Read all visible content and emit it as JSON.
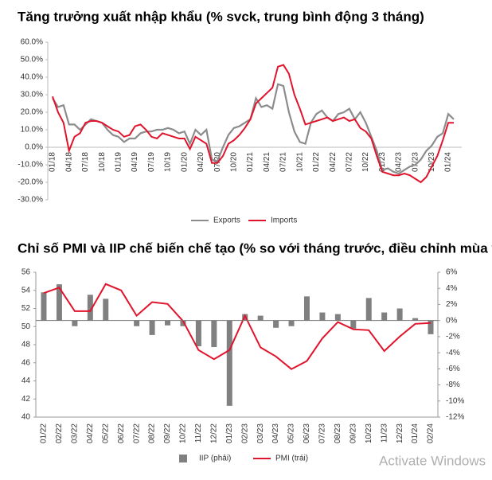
{
  "chart_data": [
    {
      "type": "line",
      "title": "Tăng trưởng xuất nhập khẩu (% svck, trung bình động 3 tháng)",
      "categories": [
        "01/18",
        null,
        null,
        "04/18",
        null,
        null,
        "07/18",
        null,
        null,
        "10/18",
        null,
        null,
        "01/19",
        null,
        null,
        "04/19",
        null,
        null,
        "07/19",
        null,
        null,
        "10/19",
        null,
        null,
        "01/20",
        null,
        null,
        "04/20",
        null,
        null,
        "07/20",
        null,
        null,
        "10/20",
        null,
        null,
        "01/21",
        null,
        null,
        "04/21",
        null,
        null,
        "07/21",
        null,
        null,
        "10/21",
        null,
        null,
        "01/22",
        null,
        null,
        "04/22",
        null,
        null,
        "07/22",
        null,
        null,
        "10/22",
        null,
        null,
        "01/23",
        null,
        null,
        "04/23",
        null,
        null,
        "07/23",
        null,
        null,
        "10/23",
        null,
        null,
        "01/24",
        null
      ],
      "series": [
        {
          "name": "Exports",
          "color": "#8c8c8c",
          "values": [
            28,
            23,
            24,
            13,
            13,
            10,
            13,
            16,
            15,
            14,
            10,
            7,
            6,
            3,
            5,
            5,
            8,
            9,
            9,
            10,
            10,
            11,
            10,
            8,
            9,
            2,
            10,
            7,
            10,
            -7,
            -8,
            0,
            7,
            11,
            12,
            14,
            16,
            28,
            23,
            24,
            22,
            36,
            35,
            20,
            9,
            3,
            2,
            14,
            19,
            21,
            17,
            15,
            19,
            20,
            22,
            16,
            20,
            14,
            6,
            -2,
            -13,
            -12,
            -14,
            -15,
            -13,
            -11,
            -10,
            -7,
            -2,
            1,
            6,
            8,
            19,
            16
          ]
        },
        {
          "name": "Imports",
          "color": "#e0142c",
          "values": [
            29,
            20,
            14,
            -2,
            6,
            8,
            14,
            15,
            15,
            14,
            12,
            10,
            9,
            6,
            7,
            12,
            13,
            10,
            6,
            5,
            8,
            7,
            6,
            5,
            5,
            -1,
            6,
            4,
            2,
            -9,
            -9,
            -5,
            2,
            4,
            7,
            11,
            16,
            25,
            28,
            31,
            34,
            46,
            47,
            42,
            30,
            22,
            13,
            14,
            15,
            16,
            17,
            15,
            16,
            17,
            15,
            16,
            11,
            9,
            5,
            -5,
            -14,
            -15,
            -16,
            -16,
            -15,
            -16,
            -18,
            -20,
            -17,
            -11,
            -5,
            4,
            14,
            14
          ]
        }
      ],
      "ylim": [
        -30,
        60
      ],
      "yticks": [
        {
          "value": -30,
          "label": "-30.0%"
        },
        {
          "value": -20,
          "label": "-20.0%"
        },
        {
          "value": -10,
          "label": "-10.0%"
        },
        {
          "value": 0,
          "label": "0.0%"
        },
        {
          "value": 10,
          "label": "10.0%"
        },
        {
          "value": 20,
          "label": "20.0%"
        },
        {
          "value": 30,
          "label": "30.0%"
        },
        {
          "value": 40,
          "label": "40.0%"
        },
        {
          "value": 50,
          "label": "50.0%"
        },
        {
          "value": 60,
          "label": "60.0%"
        }
      ],
      "legend": "bottom"
    },
    {
      "type": "combo",
      "title": "Chỉ số PMI và IIP chế biến chế tạo (% so với tháng trước, điều chỉnh mùa vụ)",
      "categories": [
        "01/22",
        "02/22",
        "03/22",
        "04/22",
        "05/22",
        "06/22",
        "07/22",
        "08/22",
        "09/22",
        "10/22",
        "11/22",
        "12/22",
        "01/23",
        "02/23",
        "03/23",
        "04/23",
        "05/23",
        "06/23",
        "07/23",
        "08/23",
        "09/23",
        "10/23",
        "11/23",
        "12/23",
        "01/24",
        "02/24"
      ],
      "series": [
        {
          "name": "IIP (phải)",
          "type": "bar",
          "axis": "y2",
          "color": "#808080",
          "values": [
            3.5,
            4.5,
            -0.7,
            3.2,
            2.7,
            0,
            -0.7,
            -1.8,
            -0.6,
            -0.7,
            -3.2,
            -3.3,
            -10.6,
            0.8,
            0.6,
            -0.9,
            -0.7,
            3.0,
            1.0,
            0.8,
            -1.0,
            2.8,
            1.0,
            1.5,
            0.3,
            -1.7
          ]
        },
        {
          "name": "PMI (trái)",
          "type": "line",
          "color": "#e0142c",
          "values": [
            53.7,
            54.3,
            51.7,
            51.7,
            54.7,
            54.0,
            51.2,
            52.7,
            52.5,
            50.6,
            47.4,
            46.4,
            47.4,
            51.2,
            47.7,
            46.7,
            45.3,
            46.2,
            48.7,
            50.5,
            49.7,
            49.6,
            47.3,
            48.9,
            50.3,
            50.4
          ]
        }
      ],
      "ylim": [
        40,
        56
      ],
      "yticks": [
        40,
        42,
        44,
        46,
        48,
        50,
        52,
        54,
        56
      ],
      "y2lim": [
        -12,
        6
      ],
      "y2ticks": [
        {
          "value": -12,
          "label": "-12%"
        },
        {
          "value": -10,
          "label": "-10%"
        },
        {
          "value": -8,
          "label": "-8%"
        },
        {
          "value": -6,
          "label": "-6%"
        },
        {
          "value": -4,
          "label": "-4%"
        },
        {
          "value": -2,
          "label": "-2%"
        },
        {
          "value": 0,
          "label": "0%"
        },
        {
          "value": 2,
          "label": "2%"
        },
        {
          "value": 4,
          "label": "4%"
        },
        {
          "value": 6,
          "label": "6%"
        }
      ],
      "legend": "bottom"
    }
  ],
  "watermark": "Activate Windows"
}
